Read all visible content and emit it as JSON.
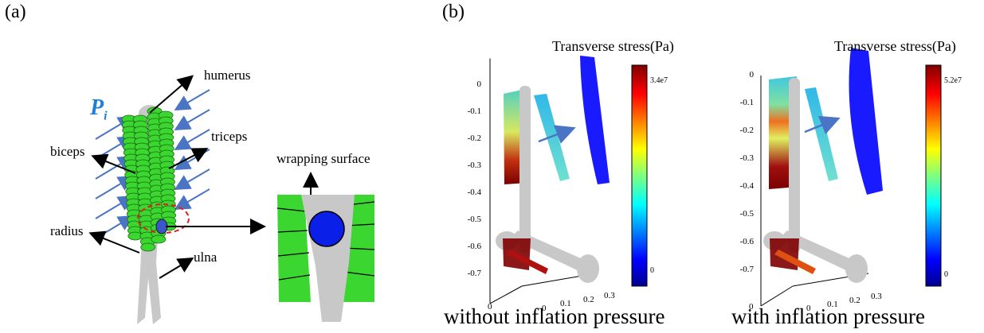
{
  "panel_a": {
    "label": "(a)",
    "labels": {
      "humerus": "humerus",
      "triceps": "triceps",
      "biceps": "biceps",
      "radius": "radius",
      "ulna": "ulna",
      "wrapping_surface": "wrapping surface",
      "pressure_symbol": "P",
      "pressure_subscript": "i"
    }
  },
  "panel_b": {
    "label": "(b)",
    "plots": [
      {
        "colorbar_title": "Transverse stress(Pa)",
        "colorbar_max": "3.4e7",
        "colorbar_min": "0",
        "caption": "without inflation pressure"
      },
      {
        "colorbar_title": "Transverse stress(Pa)",
        "colorbar_max": "5.2e7",
        "colorbar_min": "0",
        "caption": "with inflation pressure"
      }
    ],
    "z_ticks": [
      "0",
      "-0.1",
      "-0.2",
      "-0.3",
      "-0.4",
      "-0.5",
      "-0.6",
      "-0.7"
    ],
    "x_ticks": [
      "0",
      "0.1",
      "0.2",
      "0.3"
    ],
    "y_ticks": [
      "0"
    ]
  },
  "colors": {
    "muscle": "#3cd630",
    "bone": "#c8c8c8",
    "arrow_blue": "#4a74c4",
    "pressure_text": "#1f7fd8",
    "wrap_circle": "#0a1fe8",
    "highlight_ellipse": "#e02020"
  }
}
